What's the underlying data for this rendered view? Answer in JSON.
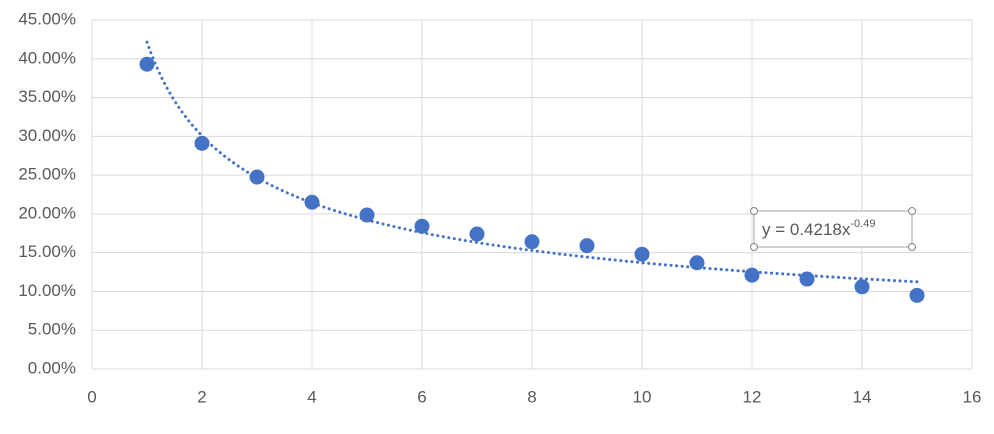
{
  "chart_data": {
    "type": "scatter",
    "x": [
      1,
      2,
      3,
      4,
      5,
      6,
      7,
      8,
      9,
      10,
      11,
      12,
      13,
      14,
      15
    ],
    "series": [
      {
        "color": "#4472c4",
        "values": [
          39.3,
          29.1,
          24.75,
          21.5,
          19.85,
          18.4,
          17.4,
          16.4,
          15.9,
          14.8,
          13.7,
          12.1,
          11.6,
          10.6,
          9.5
        ]
      }
    ],
    "xlim": [
      0,
      16
    ],
    "xticks": [
      0,
      2,
      4,
      6,
      8,
      10,
      12,
      14,
      16
    ],
    "ylim": [
      0,
      45
    ],
    "yticks": [
      {
        "value": 0,
        "label": "0.00%"
      },
      {
        "value": 5,
        "label": "5.00%"
      },
      {
        "value": 10,
        "label": "10.00%"
      },
      {
        "value": 15,
        "label": "15.00%"
      },
      {
        "value": 20,
        "label": "20.00%"
      },
      {
        "value": 25,
        "label": "25.00%"
      },
      {
        "value": 30,
        "label": "30.00%"
      },
      {
        "value": 35,
        "label": "35.00%"
      },
      {
        "value": 40,
        "label": "40.00%"
      },
      {
        "value": 45,
        "label": "45.00%"
      }
    ],
    "grid": true,
    "trendline": {
      "kind": "power",
      "label": "y = 0.4218x",
      "exponent_label": "-0.49"
    }
  }
}
